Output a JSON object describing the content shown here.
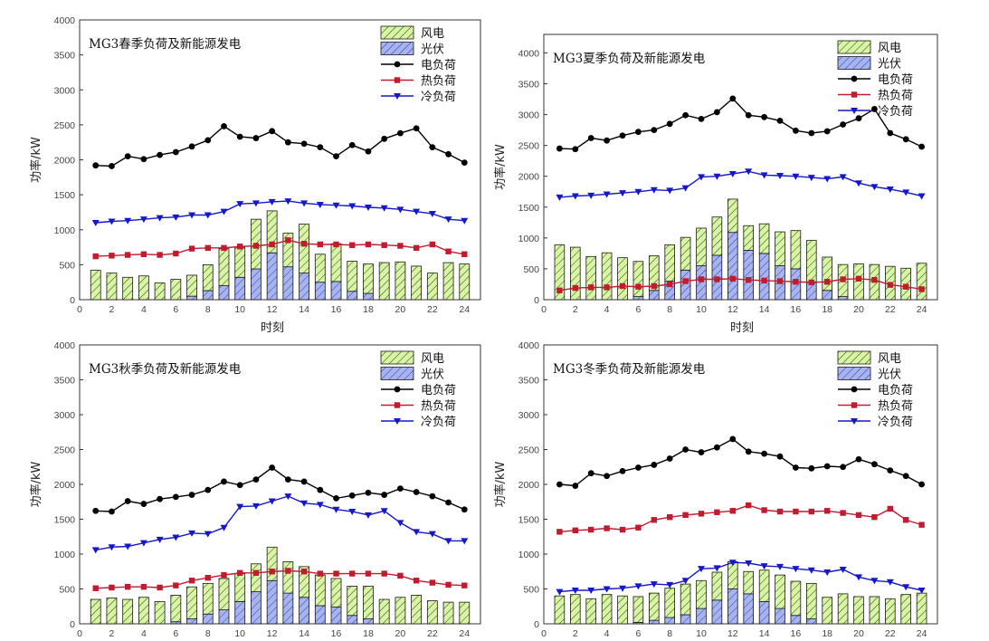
{
  "colors": {
    "wind_fill": "#d7f5a2",
    "wind_hatch": "#333333",
    "pv_fill": "#a8b4ee",
    "pv_hatch": "#2a3ab8",
    "elec": "#000000",
    "heat": "#c21a2e",
    "cold": "#1518c8"
  },
  "chart_data": [
    {
      "type": "bar+line",
      "title": "MG3春季负荷及新能源发电",
      "xlabel": "时刻",
      "ylabel": "功率/kW",
      "xlim": [
        0,
        25
      ],
      "ylim": [
        0,
        4000
      ],
      "xticks": [
        0,
        2,
        4,
        6,
        8,
        10,
        12,
        14,
        16,
        18,
        20,
        22,
        24
      ],
      "yticks": [
        0,
        500,
        1000,
        1500,
        2000,
        2500,
        3000,
        3500,
        4000
      ],
      "legend": [
        "风电",
        "光伏",
        "电负荷",
        "热负荷",
        "冷负荷"
      ],
      "x": [
        1,
        2,
        3,
        4,
        5,
        6,
        7,
        8,
        9,
        10,
        11,
        12,
        13,
        14,
        15,
        16,
        17,
        18,
        19,
        20,
        21,
        22,
        23,
        24
      ],
      "series": [
        {
          "name": "风电",
          "values": [
            420,
            380,
            320,
            340,
            240,
            290,
            300,
            370,
            530,
            430,
            710,
            600,
            480,
            700,
            400,
            540,
            430,
            420,
            530,
            540,
            480,
            380,
            530,
            510
          ]
        },
        {
          "name": "光伏",
          "values": [
            0,
            0,
            0,
            0,
            0,
            0,
            50,
            130,
            200,
            320,
            440,
            670,
            470,
            380,
            250,
            260,
            120,
            90,
            0,
            0,
            0,
            0,
            0,
            0
          ]
        },
        {
          "name": "电负荷",
          "values": [
            1920,
            1910,
            2050,
            2010,
            2070,
            2110,
            2190,
            2280,
            2480,
            2330,
            2310,
            2410,
            2250,
            2230,
            2180,
            2050,
            2210,
            2120,
            2300,
            2380,
            2450,
            2180,
            2080,
            1960
          ]
        },
        {
          "name": "热负荷",
          "values": [
            620,
            630,
            640,
            650,
            640,
            660,
            730,
            740,
            740,
            760,
            770,
            790,
            850,
            800,
            790,
            790,
            780,
            790,
            780,
            770,
            740,
            790,
            690,
            650
          ]
        },
        {
          "name": "冷负荷",
          "values": [
            1100,
            1120,
            1130,
            1150,
            1170,
            1180,
            1210,
            1210,
            1260,
            1370,
            1380,
            1400,
            1410,
            1380,
            1360,
            1350,
            1340,
            1320,
            1310,
            1290,
            1260,
            1230,
            1150,
            1130
          ]
        }
      ]
    },
    {
      "type": "bar+line",
      "title": "MG3夏季负荷及新能源发电",
      "xlabel": "时刻",
      "ylabel": "功率/kW",
      "xlim": [
        0,
        25
      ],
      "ylim": [
        0,
        4300
      ],
      "xticks": [
        0,
        2,
        4,
        6,
        8,
        10,
        12,
        14,
        16,
        18,
        20,
        22,
        24
      ],
      "yticks": [
        0,
        500,
        1000,
        1500,
        2000,
        2500,
        3000,
        3500,
        4000
      ],
      "legend": [
        "风电",
        "光伏",
        "电负荷",
        "热负荷",
        "冷负荷"
      ],
      "x": [
        1,
        2,
        3,
        4,
        5,
        6,
        7,
        8,
        9,
        10,
        11,
        12,
        13,
        14,
        15,
        16,
        17,
        18,
        19,
        20,
        21,
        22,
        23,
        24
      ],
      "series": [
        {
          "name": "风电",
          "values": [
            890,
            850,
            700,
            760,
            680,
            570,
            560,
            590,
            530,
            610,
            620,
            540,
            400,
            480,
            550,
            620,
            670,
            540,
            520,
            580,
            570,
            540,
            510,
            590
          ]
        },
        {
          "name": "光伏",
          "values": [
            0,
            0,
            0,
            0,
            0,
            50,
            150,
            300,
            480,
            550,
            720,
            1090,
            800,
            750,
            550,
            500,
            290,
            150,
            50,
            0,
            0,
            0,
            0,
            0
          ]
        },
        {
          "name": "电负荷",
          "values": [
            2450,
            2440,
            2620,
            2580,
            2660,
            2720,
            2750,
            2850,
            2990,
            2930,
            3040,
            3260,
            2990,
            2960,
            2900,
            2740,
            2700,
            2730,
            2840,
            2940,
            3090,
            2700,
            2600,
            2480
          ]
        },
        {
          "name": "热负荷",
          "values": [
            150,
            190,
            200,
            200,
            220,
            210,
            220,
            250,
            300,
            330,
            330,
            340,
            320,
            310,
            300,
            290,
            280,
            290,
            330,
            340,
            320,
            240,
            210,
            170
          ]
        },
        {
          "name": "冷负荷",
          "values": [
            1660,
            1680,
            1690,
            1710,
            1730,
            1750,
            1780,
            1770,
            1810,
            1990,
            2000,
            2040,
            2080,
            2020,
            2010,
            2000,
            1980,
            1960,
            1990,
            1890,
            1830,
            1790,
            1740,
            1680
          ]
        }
      ]
    },
    {
      "type": "bar+line",
      "title": "MG3秋季负荷及新能源发电",
      "xlabel": "",
      "ylabel": "功率/kW",
      "xlim": [
        0,
        25
      ],
      "ylim": [
        0,
        4000
      ],
      "xticks": [
        0,
        2,
        4,
        6,
        8,
        10,
        12,
        14,
        16,
        18,
        20,
        22,
        24
      ],
      "yticks": [
        0,
        500,
        1000,
        1500,
        2000,
        2500,
        3000,
        3500,
        4000
      ],
      "legend": [
        "风电",
        "光伏",
        "电负荷",
        "热负荷",
        "冷负荷"
      ],
      "x": [
        1,
        2,
        3,
        4,
        5,
        6,
        7,
        8,
        9,
        10,
        11,
        12,
        13,
        14,
        15,
        16,
        17,
        18,
        19,
        20,
        21,
        22,
        23,
        24
      ],
      "series": [
        {
          "name": "风电",
          "values": [
            350,
            370,
            350,
            380,
            320,
            380,
            460,
            440,
            450,
            400,
            400,
            480,
            450,
            440,
            440,
            410,
            420,
            470,
            350,
            380,
            410,
            330,
            310,
            310
          ]
        },
        {
          "name": "光伏",
          "values": [
            0,
            0,
            0,
            0,
            0,
            30,
            70,
            140,
            200,
            320,
            460,
            620,
            440,
            380,
            260,
            240,
            120,
            70,
            0,
            0,
            0,
            0,
            0,
            0
          ]
        },
        {
          "name": "电负荷",
          "values": [
            1620,
            1610,
            1760,
            1720,
            1790,
            1820,
            1850,
            1920,
            2040,
            1990,
            2070,
            2240,
            2070,
            2040,
            1920,
            1800,
            1840,
            1880,
            1850,
            1940,
            1890,
            1830,
            1740,
            1640
          ]
        },
        {
          "name": "热负荷",
          "values": [
            510,
            520,
            530,
            530,
            520,
            550,
            620,
            660,
            700,
            730,
            730,
            750,
            760,
            750,
            720,
            720,
            720,
            720,
            720,
            690,
            620,
            590,
            560,
            550
          ]
        },
        {
          "name": "冷负荷",
          "values": [
            1060,
            1100,
            1110,
            1160,
            1210,
            1240,
            1300,
            1290,
            1380,
            1680,
            1690,
            1760,
            1830,
            1730,
            1710,
            1640,
            1610,
            1560,
            1620,
            1450,
            1320,
            1290,
            1190,
            1190
          ]
        }
      ]
    },
    {
      "type": "bar+line",
      "title": "MG3冬季负荷及新能源发电",
      "xlabel": "",
      "ylabel": "功率/kW",
      "xlim": [
        0,
        25
      ],
      "ylim": [
        0,
        4000
      ],
      "xticks": [
        0,
        2,
        4,
        6,
        8,
        10,
        12,
        14,
        16,
        18,
        20,
        22,
        24
      ],
      "yticks": [
        0,
        500,
        1000,
        1500,
        2000,
        2500,
        3000,
        3500,
        4000
      ],
      "legend": [
        "风电",
        "光伏",
        "电负荷",
        "热负荷",
        "冷负荷"
      ],
      "x": [
        1,
        2,
        3,
        4,
        5,
        6,
        7,
        8,
        9,
        10,
        11,
        12,
        13,
        14,
        15,
        16,
        17,
        18,
        19,
        20,
        21,
        22,
        23,
        24
      ],
      "series": [
        {
          "name": "风电",
          "values": [
            400,
            420,
            360,
            420,
            400,
            370,
            390,
            420,
            440,
            400,
            400,
            390,
            320,
            450,
            480,
            490,
            510,
            380,
            430,
            390,
            390,
            360,
            420,
            440
          ]
        },
        {
          "name": "光伏",
          "values": [
            0,
            0,
            0,
            0,
            0,
            20,
            50,
            90,
            130,
            220,
            340,
            500,
            430,
            320,
            220,
            120,
            70,
            0,
            0,
            0,
            0,
            0,
            0,
            0
          ]
        },
        {
          "name": "电负荷",
          "values": [
            2000,
            1980,
            2160,
            2120,
            2190,
            2240,
            2280,
            2370,
            2500,
            2460,
            2530,
            2650,
            2470,
            2440,
            2400,
            2240,
            2230,
            2260,
            2250,
            2360,
            2290,
            2200,
            2120,
            2000
          ]
        },
        {
          "name": "热负荷",
          "values": [
            1320,
            1340,
            1350,
            1370,
            1350,
            1380,
            1490,
            1530,
            1560,
            1580,
            1600,
            1620,
            1700,
            1630,
            1610,
            1610,
            1610,
            1620,
            1590,
            1560,
            1530,
            1650,
            1490,
            1420
          ]
        },
        {
          "name": "冷负荷",
          "values": [
            460,
            480,
            480,
            500,
            510,
            540,
            570,
            560,
            620,
            790,
            800,
            880,
            870,
            830,
            820,
            790,
            770,
            740,
            780,
            670,
            620,
            600,
            530,
            480
          ]
        }
      ]
    }
  ]
}
